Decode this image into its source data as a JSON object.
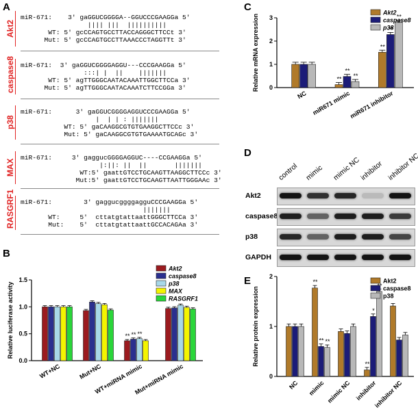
{
  "panel_labels": {
    "A": "A",
    "B": "B",
    "C": "C",
    "D": "D",
    "E": "E"
  },
  "panelA": {
    "genes": [
      {
        "name": "Akt2",
        "rows": [
          "miR-671:    3' gaGGUCGGGGA--GGUCCCGAAGGa 5'",
          "                 |||| |||  ||||||||||",
          "       WT: 5' gcCCAGTGCCTTACCAGGGCTTCCt 3'",
          "      Mut: 5' gcCCAGTGCCTTAAACCCTAGGTTt 3'"
        ]
      },
      {
        "name": "caspase8",
        "rows": [
          "miR-671:  3' gaGGUCGGGGAGGU---CCCGAAGGa 5'",
          "                :::| |  ||    |||||||",
          "       WT: 5' agTTGGGCAATACAAATTGGCTTCCa 3'",
          "      Mut: 5' agTTGGGCAATACAAATCTTCCGGa 3'"
        ]
      },
      {
        "name": "p38",
        "rows": [
          "miR-671:      3' gaGGUCGGGGAGGUCCCGAAGGa 5'",
          "                   |  | | : |||||||",
          "           WT: 5' gaCAAGGCGTGTGAAGGCTTCCc 3'",
          "           Mut: 5' gaCAAGGCGTGTGAAAATGCAGc 3'"
        ]
      },
      {
        "name": "MAX",
        "rows": [
          "miR-671:     3' gaggucGGGGAGGUC----CCGAAGGa 5'",
          "                    |:||: ||  ||       |||||||",
          "               WT:5' gaattGTCCTGCAAGTTAAGGCTTCCc 3'",
          "              Mut:5' gaattGTCCTGCAAGTTAATTGGGAAc 3'"
        ]
      },
      {
        "name": "RASGRF1",
        "rows": [
          "miR-671:        3' gaggucggggagguCCCGAAGGa 5'",
          "                               |||||||",
          "       WT:     5'  cttatgtattaattGGGCTTCCa 3'",
          "       Mut:    5'  cttatgtattaattGCCACAGAa 3'"
        ]
      }
    ]
  },
  "chart_data": [
    {
      "type": "bar",
      "panel": "B",
      "ylabel": "Relative luciferase activity",
      "ylim": [
        0,
        1.5
      ],
      "yticks": [
        "0.0",
        "0.5",
        "1.0",
        "1.5"
      ],
      "categories": [
        "WT+NC",
        "Mut+NC",
        "WT+miRNA mimic",
        "Mut+miRNA mimic"
      ],
      "series": [
        {
          "name": "Akt2",
          "color": "#9b1b1f",
          "values": [
            1.0,
            0.93,
            0.37,
            0.97
          ]
        },
        {
          "name": "caspase8",
          "color": "#2a2f8f",
          "values": [
            1.0,
            1.09,
            0.4,
            0.98
          ]
        },
        {
          "name": "p38",
          "color": "#a8d8e8",
          "values": [
            1.0,
            1.06,
            0.41,
            1.03
          ]
        },
        {
          "name": "MAX",
          "color": "#f4f400",
          "values": [
            1.0,
            1.04,
            0.37,
            0.99
          ]
        },
        {
          "name": "RASGRF1",
          "color": "#2ad63a",
          "values": [
            1.0,
            0.94,
            0.0,
            0.96
          ]
        }
      ],
      "annotations": [
        "**",
        "**",
        "**"
      ]
    },
    {
      "type": "bar",
      "panel": "C",
      "ylabel": "Relative mRNA expression",
      "ylim": [
        0,
        3
      ],
      "yticks": [
        "0",
        "1",
        "2",
        "3"
      ],
      "categories": [
        "NC",
        "miR671 mimic",
        "miR671 inhibitor"
      ],
      "series": [
        {
          "name": "Akt2",
          "color": "#b07a2a",
          "values": [
            1.0,
            0.13,
            1.52
          ]
        },
        {
          "name": "caspase8",
          "color": "#1c1c78",
          "values": [
            1.0,
            0.48,
            2.28
          ]
        },
        {
          "name": "p38",
          "color": "#b8b8b8",
          "values": [
            1.0,
            0.26,
            2.8
          ]
        }
      ],
      "annotations": [
        "**",
        "**",
        "**",
        "**",
        "**",
        "**"
      ]
    },
    {
      "type": "bar",
      "panel": "E",
      "ylabel": "Relative protein expression",
      "ylim": [
        0,
        2
      ],
      "yticks": [
        "0",
        "1",
        "2"
      ],
      "categories": [
        "NC",
        "mimic",
        "mimic NC",
        "inhibitor",
        "inhibitor NC"
      ],
      "series": [
        {
          "name": "Akt2",
          "color": "#b07a2a",
          "values": [
            1.0,
            1.77,
            0.9,
            0.13,
            1.41
          ]
        },
        {
          "name": "caspase8",
          "color": "#1c1c78",
          "values": [
            1.0,
            0.6,
            0.86,
            1.2,
            0.73
          ]
        },
        {
          "name": "p38",
          "color": "#b8b8b8",
          "values": [
            1.0,
            0.58,
            1.0,
            1.7,
            0.83
          ]
        }
      ],
      "annotations": [
        "**",
        "**",
        "**",
        "**",
        "*",
        "**"
      ]
    }
  ],
  "panelD": {
    "lanes": [
      "control",
      "mimic",
      "mimic NC",
      "inhibitor",
      "inhibitor NC"
    ],
    "rows": [
      "Akt2",
      "caspase8",
      "p38",
      "GAPDH"
    ],
    "intensity": {
      "Akt2": [
        1.0,
        0.85,
        0.9,
        0.15,
        1.0
      ],
      "caspase8": [
        0.95,
        0.6,
        0.95,
        0.95,
        0.8
      ],
      "p38": [
        0.9,
        0.6,
        0.95,
        0.95,
        0.75
      ],
      "GAPDH": [
        1.0,
        1.0,
        1.0,
        1.0,
        1.0
      ]
    }
  }
}
